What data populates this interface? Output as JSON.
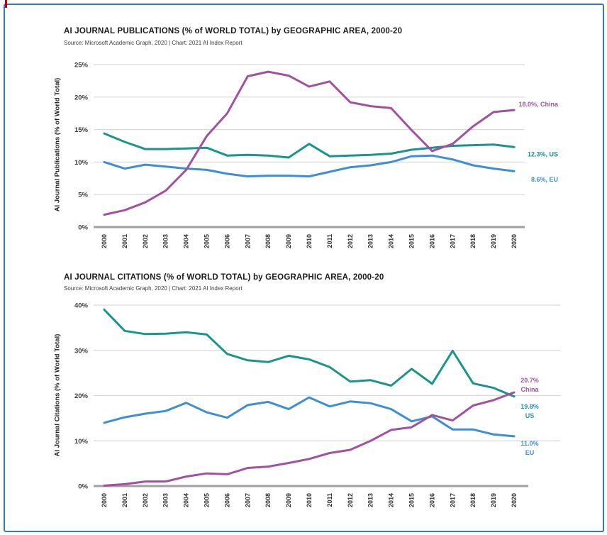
{
  "page": {
    "frame_color": "#2e7cc2",
    "corner_mark_color": "#c00000",
    "background": "#ffffff"
  },
  "chart_data": [
    {
      "type": "line",
      "title": "AI JOURNAL PUBLICATIONS (% of WORLD TOTAL) by GEOGRAPHIC AREA, 2000-20",
      "source": "Source: Microsoft Academic Graph, 2020 | Chart: 2021 AI Index Report",
      "ylabel": "AI Journal Publications (% of World Total)",
      "x": [
        2000,
        2001,
        2002,
        2003,
        2004,
        2005,
        2006,
        2007,
        2008,
        2009,
        2010,
        2011,
        2012,
        2013,
        2014,
        2015,
        2016,
        2017,
        2018,
        2019,
        2020
      ],
      "ylim": [
        0,
        25
      ],
      "yticks": [
        0,
        5,
        10,
        15,
        20,
        25
      ],
      "ytick_labels": [
        "0%",
        "5%",
        "10%",
        "15%",
        "20%",
        "25%"
      ],
      "grid": true,
      "legend_position": "end-of-line labels",
      "series": [
        {
          "name": "China",
          "color": "#a1519f",
          "end_label_lines": [
            "18.0%, China"
          ],
          "values": [
            1.9,
            2.6,
            3.8,
            5.6,
            8.8,
            14.0,
            17.5,
            23.2,
            23.9,
            23.3,
            21.6,
            22.4,
            19.2,
            18.6,
            18.3,
            14.9,
            11.7,
            12.8,
            15.5,
            17.7,
            18.0
          ]
        },
        {
          "name": "US",
          "color": "#1a948c",
          "end_label_lines": [
            "12.3%, US"
          ],
          "values": [
            14.4,
            13.1,
            12.0,
            12.0,
            12.1,
            12.2,
            11.0,
            11.1,
            11.0,
            10.7,
            12.8,
            10.9,
            11.0,
            11.1,
            11.3,
            11.9,
            12.2,
            12.5,
            12.6,
            12.7,
            12.3
          ]
        },
        {
          "name": "EU",
          "color": "#3e8ed6",
          "end_label_lines": [
            "8.6%, EU"
          ],
          "values": [
            10.0,
            9.0,
            9.6,
            9.3,
            9.0,
            8.8,
            8.2,
            7.8,
            7.9,
            7.9,
            7.8,
            8.5,
            9.2,
            9.5,
            10.0,
            10.9,
            11.0,
            10.4,
            9.5,
            9.0,
            8.6
          ]
        }
      ]
    },
    {
      "type": "line",
      "title": "AI JOURNAL CITATIONS (% of WORLD TOTAL) by GEOGRAPHIC AREA, 2000-20",
      "source": "Source: Microsoft Academic Graph, 2020 | Chart: 2021 AI Index Report",
      "ylabel": "AI Journal Citations (% of World Total)",
      "x": [
        2000,
        2001,
        2002,
        2003,
        2004,
        2005,
        2006,
        2007,
        2008,
        2009,
        2010,
        2011,
        2012,
        2013,
        2014,
        2015,
        2016,
        2017,
        2018,
        2019,
        2020
      ],
      "ylim": [
        0,
        40
      ],
      "yticks": [
        0,
        10,
        20,
        30,
        40
      ],
      "ytick_labels": [
        "0%",
        "10%",
        "20%",
        "30%",
        "40%"
      ],
      "grid": true,
      "legend_position": "end-of-line labels",
      "series": [
        {
          "name": "China",
          "color": "#a1519f",
          "end_label_lines": [
            "20.7%",
            "China"
          ],
          "values": [
            0.1,
            0.4,
            1.0,
            1.0,
            2.1,
            2.8,
            2.6,
            4.0,
            4.3,
            5.1,
            6.0,
            7.3,
            8.0,
            10.0,
            12.4,
            13.0,
            15.7,
            14.5,
            17.8,
            19.0,
            20.7
          ]
        },
        {
          "name": "US",
          "color": "#1a948c",
          "label_color": "#2395bd",
          "end_label_lines": [
            "19.8%",
            "US"
          ],
          "values": [
            39.0,
            34.3,
            33.6,
            33.7,
            34.0,
            33.5,
            29.2,
            27.8,
            27.4,
            28.8,
            28.0,
            26.3,
            23.1,
            23.4,
            22.2,
            25.9,
            22.6,
            29.9,
            22.7,
            21.7,
            19.8
          ]
        },
        {
          "name": "EU",
          "color": "#3e8ed6",
          "end_label_lines": [
            "11.0%",
            "EU"
          ],
          "values": [
            14.0,
            15.2,
            16.0,
            16.6,
            18.4,
            16.3,
            15.1,
            17.9,
            18.6,
            17.0,
            19.6,
            17.6,
            18.7,
            18.3,
            17.0,
            14.3,
            15.4,
            12.5,
            12.5,
            11.4,
            11.0
          ]
        }
      ]
    }
  ]
}
